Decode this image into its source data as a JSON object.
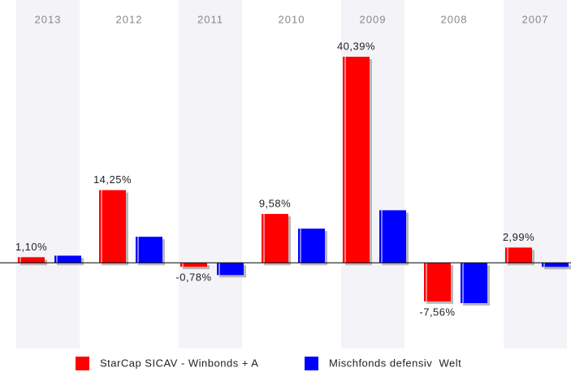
{
  "chart_data": {
    "type": "bar",
    "categories": [
      "2013",
      "2012",
      "2011",
      "2010",
      "2009",
      "2008",
      "2007"
    ],
    "series": [
      {
        "name": "StarCap SICAV - Winbonds + A",
        "color": "#ff0000",
        "values": [
          1.1,
          14.25,
          -0.78,
          9.58,
          40.39,
          -7.56,
          2.99
        ],
        "value_labels": [
          "1,10%",
          "14,25%",
          "-0,78%",
          "9,58%",
          "40,39%",
          "-7,56%",
          "2,99%"
        ]
      },
      {
        "name": "Mischfonds defensiv  Welt",
        "color": "#0000ff",
        "values": [
          1.4,
          5.1,
          -2.4,
          6.7,
          10.3,
          -7.9,
          -0.8
        ]
      }
    ],
    "legend": "bottom"
  }
}
